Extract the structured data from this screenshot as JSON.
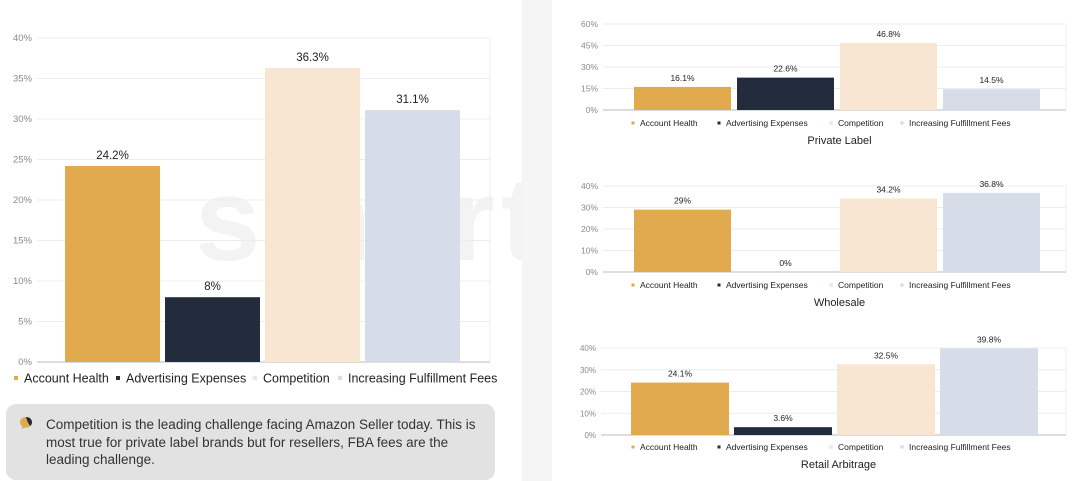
{
  "brand_watermark": "smartscout",
  "colors": {
    "account_health": "#e2aa4f",
    "advertising_expenses": "#222c3c",
    "competition": "#f8e6d3",
    "increasing_fulfillment_fees": "#d6dde8"
  },
  "note": {
    "icon": "speech-bubble-icon",
    "text": "Competition is the leading challenge facing Amazon Seller today. This is most true for private label brands but for resellers, FBA fees are the leading challenge."
  },
  "chart_data": [
    {
      "type": "bar",
      "title": "",
      "categories": [
        "Account Health",
        "Advertising Expenses",
        "Competition",
        "Increasing Fulfillment Fees"
      ],
      "values": [
        24.2,
        8,
        36.3,
        31.1
      ],
      "value_labels": [
        "24.2%",
        "8%",
        "36.3%",
        "31.1%"
      ],
      "ylim": [
        0,
        40
      ],
      "yticks": [
        "0%",
        "5%",
        "10%",
        "15%",
        "20%",
        "25%",
        "30%",
        "35%",
        "40%"
      ],
      "legend": [
        "Account Health",
        "Advertising Expenses",
        "Competition",
        "Increasing Fulfillment Fees"
      ],
      "legend_position": "bottom",
      "grid": true
    },
    {
      "type": "bar",
      "title": "Private Label",
      "categories": [
        "Account Health",
        "Advertising Expenses",
        "Competition",
        "Increasing Fulfillment Fees"
      ],
      "values": [
        16.1,
        22.6,
        46.8,
        14.5
      ],
      "value_labels": [
        "16.1%",
        "22.6%",
        "46.8%",
        "14.5%"
      ],
      "ylim": [
        0,
        60
      ],
      "yticks": [
        "0%",
        "15%",
        "30%",
        "45%",
        "60%"
      ],
      "legend": [
        "Account Health",
        "Advertising Expenses",
        "Competition",
        "Increasing Fulfillment Fees"
      ],
      "legend_position": "bottom",
      "grid": true
    },
    {
      "type": "bar",
      "title": "Wholesale",
      "categories": [
        "Account Health",
        "Advertising Expenses",
        "Competition",
        "Increasing Fulfillment Fees"
      ],
      "values": [
        29,
        0,
        34.2,
        36.8
      ],
      "value_labels": [
        "29%",
        "0%",
        "34.2%",
        "36.8%"
      ],
      "ylim": [
        0,
        40
      ],
      "yticks": [
        "0%",
        "10%",
        "20%",
        "30%",
        "40%"
      ],
      "legend": [
        "Account Health",
        "Advertising Expenses",
        "Competition",
        "Increasing Fulfillment Fees"
      ],
      "legend_position": "bottom",
      "grid": true
    },
    {
      "type": "bar",
      "title": "Retail Arbitrage",
      "categories": [
        "Account Health",
        "Advertising Expenses",
        "Competition",
        "Increasing Fulfillment Fees"
      ],
      "values": [
        24.1,
        3.6,
        32.5,
        39.8
      ],
      "value_labels": [
        "24.1%",
        "3.6%",
        "32.5%",
        "39.8%"
      ],
      "ylim": [
        0,
        40
      ],
      "yticks": [
        "0%",
        "10%",
        "20%",
        "30%",
        "40%"
      ],
      "legend": [
        "Account Health",
        "Advertising Expenses",
        "Competition",
        "Increasing Fulfillment Fees"
      ],
      "legend_position": "bottom",
      "grid": true
    }
  ]
}
